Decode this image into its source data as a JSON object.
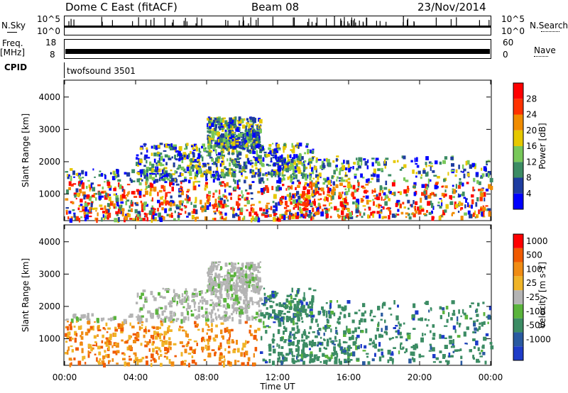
{
  "header": {
    "station": "Dome C East (fitACF)",
    "beam": "Beam 08",
    "date": "23/Nov/2014"
  },
  "top_panels": {
    "nsky_label": "N.Sky",
    "nsearch_label": "N.Search",
    "nsky_ticks": [
      "10^5",
      "10^0"
    ],
    "nsearch_ticks": [
      "10^5",
      "10^0"
    ],
    "freq_label": "Freq.",
    "freq_unit": "[MHz]",
    "freq_ticks": [
      "18",
      "8"
    ],
    "nave_label": "Nave",
    "nave_ticks": [
      "60",
      "0"
    ],
    "cpid_label": "CPID",
    "cpid_value": "twofsound 3501"
  },
  "chart_data": [
    {
      "type": "heatmap",
      "panel": "power",
      "ylabel": "Slant Range [km]",
      "yticks": [
        "1000",
        "2000",
        "3000",
        "4000"
      ],
      "ylim": [
        200,
        4500
      ],
      "colorbar_label": "Power [dB]",
      "colorbar_ticks": [
        "4",
        "8",
        "12",
        "16",
        "20",
        "24",
        "28"
      ],
      "colors": [
        "#0000ff",
        "#1e3ca0",
        "#3c8c64",
        "#78c85a",
        "#e6c800",
        "#f08c00",
        "#ff3200",
        "#ff0000"
      ]
    },
    {
      "type": "heatmap",
      "panel": "velocity",
      "ylabel": "Slant Range [km]",
      "yticks": [
        "1000",
        "2000",
        "3000",
        "4000"
      ],
      "ylim": [
        200,
        4500
      ],
      "colorbar_label": "Velocity [m s-1]",
      "colorbar_ticks": [
        "1000",
        "500",
        "100",
        "25",
        "-25",
        "-100",
        "-500",
        "-1000"
      ],
      "colors": [
        "#1e3cc8",
        "#2a5aa0",
        "#3c8c64",
        "#5ab43c",
        "#b4b4b4",
        "#f0b428",
        "#f08c14",
        "#f05a00",
        "#ff0000"
      ],
      "xticks": [
        "00:00",
        "04:00",
        "08:00",
        "12:00",
        "16:00",
        "20:00",
        "00:00"
      ],
      "xlabel": "Time UT"
    }
  ]
}
